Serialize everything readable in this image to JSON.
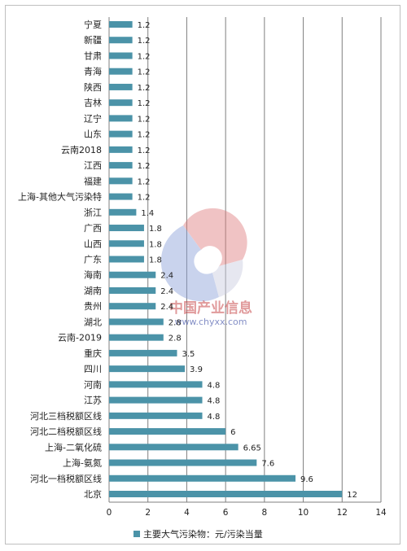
{
  "chart_data": {
    "type": "bar",
    "orientation": "horizontal",
    "categories": [
      "宁夏",
      "新疆",
      "甘肃",
      "青海",
      "陕西",
      "吉林",
      "辽宁",
      "山东",
      "云南2018",
      "江西",
      "福建",
      "上海-其他大气污染特",
      "浙江",
      "广西",
      "山西",
      "广东",
      "海南",
      "湖南",
      "贵州",
      "湖北",
      "云南-2019",
      "重庆",
      "四川",
      "河南",
      "江苏",
      "河北三档税额区线",
      "河北二档税额区线",
      "上海-二氧化硫",
      "上海-氨氮",
      "河北一档税额区线",
      "北京"
    ],
    "values": [
      "1.2",
      "1.2",
      "1.2",
      "1.2",
      "1.2",
      "1.2",
      "1.2",
      "1.2",
      "1.2",
      "1.2",
      "1.2",
      "1.2",
      "1.4",
      "1.8",
      "1.8",
      "1.8",
      "2.4",
      "2.4",
      "2.4",
      "2.8",
      "2.8",
      "3.5",
      "3.9",
      "4.8",
      "4.8",
      "4.8",
      "6",
      "6.65",
      "7.6",
      "9.6",
      "12"
    ],
    "x_ticks": [
      "0",
      "2",
      "4",
      "6",
      "8",
      "10",
      "12",
      "14"
    ],
    "xlim": [
      0,
      14
    ],
    "grid": "vertical",
    "legend": {
      "label": "主要大气污染物：元/污染当量",
      "position": "bottom"
    },
    "bar_color": "#4b93a8"
  },
  "watermark": {
    "name": "中国产业信息",
    "url": "www.chyxx.com"
  }
}
